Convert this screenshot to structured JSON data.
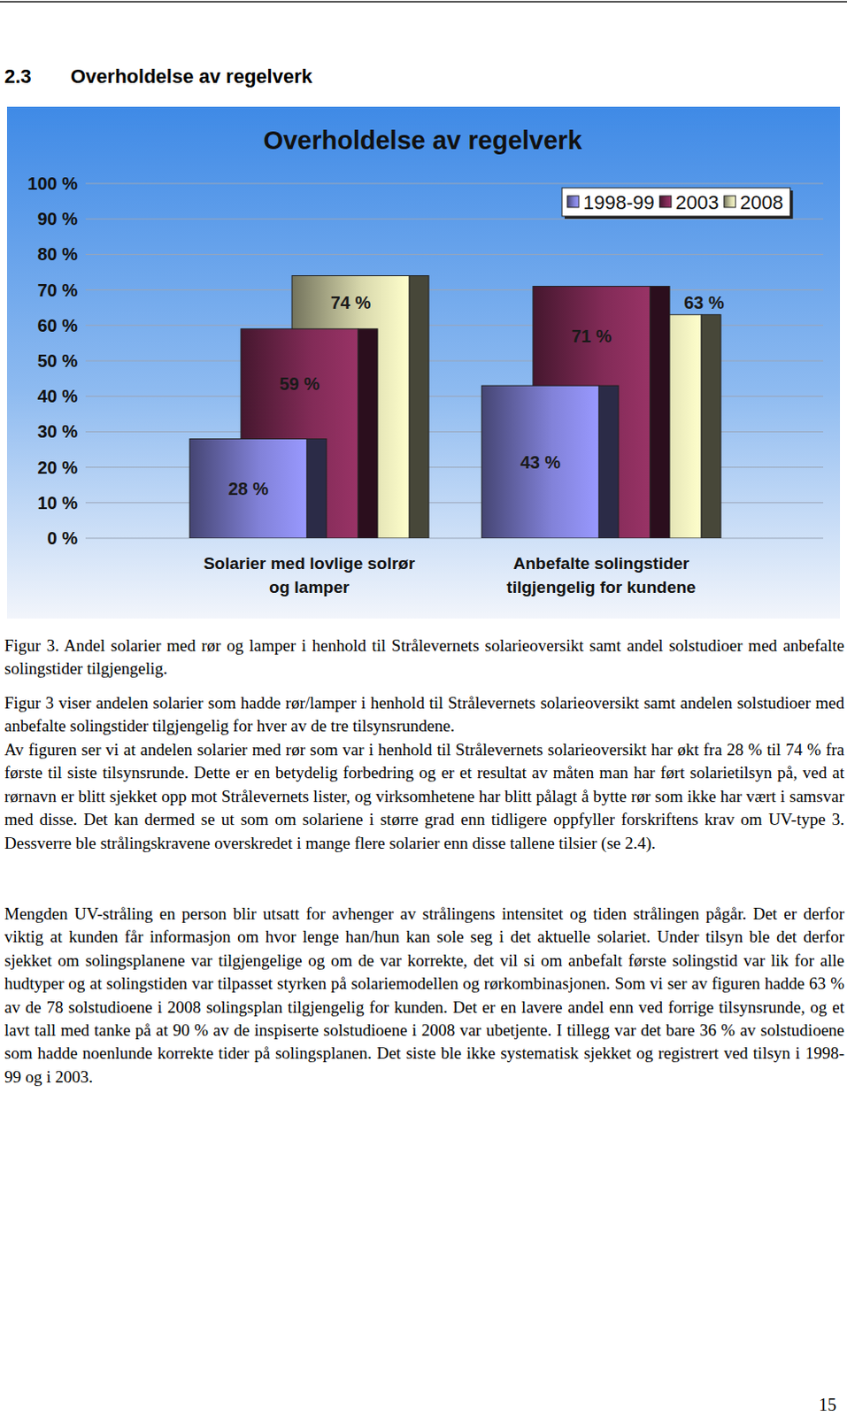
{
  "header": {
    "number": "2.3",
    "title": "Overholdelse av regelverk"
  },
  "chart_data": {
    "type": "bar",
    "title": "Overholdelse av regelverk",
    "categories": [
      "Solarier med lovlige solrør og lamper",
      "Anbefalte solingstider tilgjengelig for kundene"
    ],
    "series": [
      {
        "name": "1998-99",
        "color": "#9999ff",
        "values": [
          28,
          43
        ],
        "value_labels": [
          "28 %",
          "43 %"
        ]
      },
      {
        "name": "2003",
        "color": "#993366",
        "values": [
          59,
          71
        ],
        "value_labels": [
          "59 %",
          "71 %"
        ]
      },
      {
        "name": "2008",
        "color": "#ffffcc",
        "values": [
          74,
          63
        ],
        "value_labels": [
          "74 %",
          "63 %"
        ]
      }
    ],
    "ylim": [
      0,
      100
    ],
    "yticks": [
      {
        "value": 0,
        "label": "0 %"
      },
      {
        "value": 10,
        "label": "10 %"
      },
      {
        "value": 20,
        "label": "20 %"
      },
      {
        "value": 30,
        "label": "30 %"
      },
      {
        "value": 40,
        "label": "40 %"
      },
      {
        "value": 50,
        "label": "50 %"
      },
      {
        "value": 60,
        "label": "60 %"
      },
      {
        "value": 70,
        "label": "70 %"
      },
      {
        "value": 80,
        "label": "80 %"
      },
      {
        "value": 90,
        "label": "90 %"
      },
      {
        "value": 100,
        "label": "100 %"
      }
    ],
    "grid": true,
    "legend": "top-right",
    "data_labels": true
  },
  "caption": "Figur 3. Andel solarier med rør og lamper i henhold til Strålevernets solarieoversikt samt andel solstudioer med anbefalte solingstider tilgjengelig.",
  "paragraphs": [
    "Figur 3 viser andelen solarier som hadde rør/lamper i henhold til Strålevernets solarieoversikt samt andelen solstudioer med anbefalte solingstider tilgjengelig for hver av de tre tilsynsrundene.",
    "Av figuren ser vi at andelen solarier med rør som var i henhold til Strålevernets solarieoversikt har økt fra 28 % til 74 % fra første til siste tilsynsrunde. Dette er en betydelig forbedring og er et resultat av måten man har ført solarietilsyn på, ved at rørnavn er blitt sjekket opp mot Strålevernets lister, og virksomhetene har blitt pålagt å bytte rør som ikke har vært i samsvar med disse. Det kan dermed se ut som om solariene i større grad enn tidligere oppfyller forskriftens krav om UV-type 3. Dessverre ble strålingskravene overskredet i mange flere solarier enn disse tallene tilsier (se 2.4).",
    "Mengden UV-stråling en person blir utsatt for avhenger av strålingens intensitet og tiden strålingen pågår. Det er derfor viktig at kunden får informasjon om hvor lenge han/hun kan sole seg i det aktuelle solariet. Under tilsyn ble det derfor sjekket om solingsplanene var tilgjengelige og om de var korrekte, det vil si om anbefalt første solingstid var lik for alle hudtyper og at solingstiden var tilpasset styrken på solariemodellen og rørkombinasjonen. Som vi ser av figuren hadde 63 % av de 78 solstudioene i 2008 solingsplan tilgjengelig for kunden. Det er en lavere andel enn ved forrige tilsynsrunde, og et lavt tall med tanke på at 90 % av de inspiserte solstudioene i 2008 var ubetjente. I tillegg var det bare 36 % av solstudioene som hadde noenlunde korrekte tider på solingsplanen. Det siste ble ikke systematisk sjekket og registrert ved tilsyn i 1998-99 og i 2003."
  ],
  "page_number": "15"
}
